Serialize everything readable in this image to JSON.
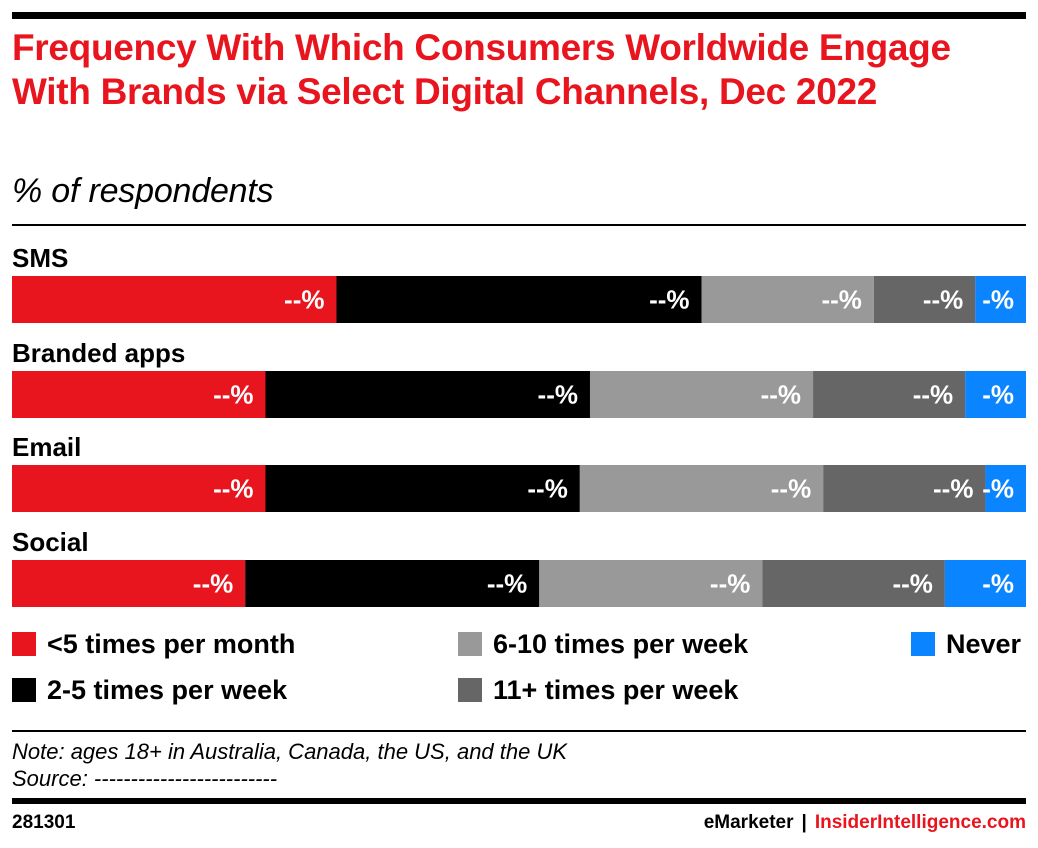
{
  "title": "Frequency With Which Consumers Worldwide Engage With Brands via Select Digital Channels, Dec 2022",
  "subtitle": "% of respondents",
  "note": "Note: ages 18+ in Australia, Canada, the US, and the UK",
  "source": "Source: -------------------------",
  "chart_id": "281301",
  "brand": {
    "emarketer": "eMarketer",
    "separator": "|",
    "insider": "InsiderIntelligence.com"
  },
  "colors": {
    "title": "#e8141e",
    "lt5_month": "#e8141e",
    "w2_5": "#000000",
    "w6_10": "#999999",
    "w11_plus": "#666666",
    "never": "#0a84ff"
  },
  "chart_data": {
    "type": "bar",
    "orientation": "horizontal",
    "stacked": true,
    "percent_stacked": true,
    "categories": [
      "SMS",
      "Branded apps",
      "Email",
      "Social"
    ],
    "value_labels": [
      "--%",
      "--%",
      "--%",
      "--%"
    ],
    "series": [
      {
        "name": "<5 times per month",
        "color": "#e8141e",
        "values": [
          32,
          25,
          25,
          23
        ],
        "labels": [
          "--%",
          "--%",
          "--%",
          "--%"
        ]
      },
      {
        "name": "2-5 times per week",
        "color": "#000000",
        "values": [
          36,
          32,
          31,
          29
        ],
        "labels": [
          "--%",
          "--%",
          "--%",
          "--%"
        ]
      },
      {
        "name": "6-10 times per week",
        "color": "#999999",
        "values": [
          17,
          22,
          24,
          22
        ],
        "labels": [
          "--%",
          "--%",
          "--%",
          "--%"
        ]
      },
      {
        "name": "11+ times per week",
        "color": "#666666",
        "values": [
          10,
          15,
          16,
          18
        ],
        "labels": [
          "--%",
          "--%",
          "--%",
          "--%"
        ]
      },
      {
        "name": "Never",
        "color": "#0a84ff",
        "values": [
          5,
          6,
          4,
          8
        ],
        "labels": [
          "-%",
          "-%",
          "-%",
          "-%"
        ]
      }
    ],
    "xlim": [
      0,
      100
    ],
    "grid": false,
    "legend": "bottom"
  }
}
